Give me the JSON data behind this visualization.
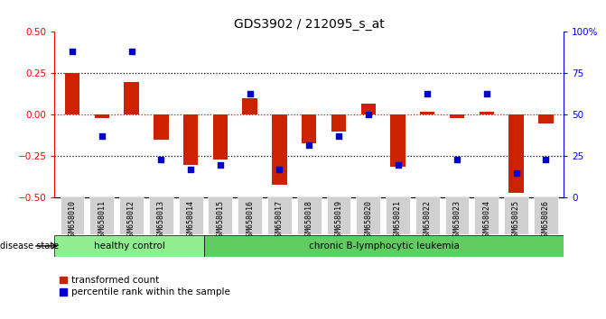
{
  "title": "GDS3902 / 212095_s_at",
  "samples": [
    "GSM658010",
    "GSM658011",
    "GSM658012",
    "GSM658013",
    "GSM658014",
    "GSM658015",
    "GSM658016",
    "GSM658017",
    "GSM658018",
    "GSM658019",
    "GSM658020",
    "GSM658021",
    "GSM658022",
    "GSM658023",
    "GSM658024",
    "GSM658025",
    "GSM658026"
  ],
  "transformed_count": [
    0.25,
    -0.02,
    0.2,
    -0.15,
    -0.3,
    -0.27,
    0.1,
    -0.42,
    -0.17,
    -0.1,
    0.07,
    -0.31,
    0.02,
    -0.02,
    0.02,
    -0.47,
    -0.05
  ],
  "percentile_rank_pct": [
    88,
    37,
    88,
    23,
    17,
    20,
    63,
    17,
    32,
    37,
    50,
    20,
    63,
    23,
    63,
    15,
    23
  ],
  "healthy_control_count": 5,
  "ylim_left": [
    -0.5,
    0.5
  ],
  "ylim_right": [
    0,
    100
  ],
  "yticks_left": [
    -0.5,
    -0.25,
    0,
    0.25,
    0.5
  ],
  "yticks_right": [
    0,
    25,
    50,
    75,
    100
  ],
  "bar_color": "#cc2200",
  "square_color": "#0000cc",
  "healthy_color": "#90ee90",
  "leukemia_color": "#5fcd5f",
  "bg_color": "#ffffff",
  "tick_bg_color": "#d0d0d0",
  "bar_width": 0.5,
  "square_size": 22,
  "disease_state_label": "disease state",
  "healthy_label": "healthy control",
  "leukemia_label": "chronic B-lymphocytic leukemia",
  "legend_red": "transformed count",
  "legend_blue": "percentile rank within the sample"
}
